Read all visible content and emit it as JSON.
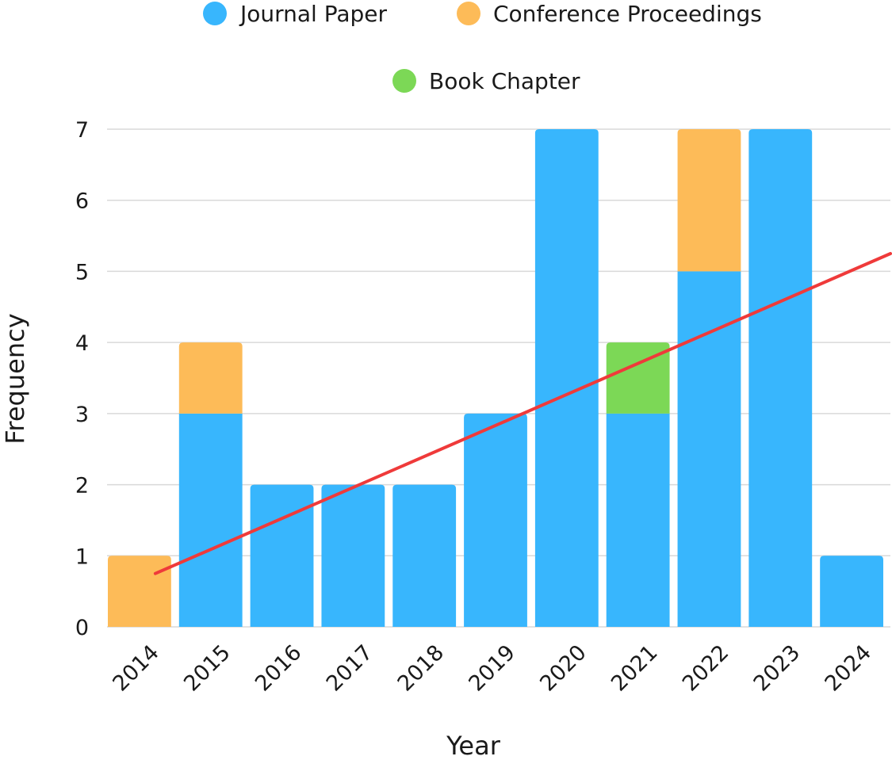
{
  "chart_data": {
    "type": "bar",
    "stacked": true,
    "categories": [
      "2014",
      "2015",
      "2016",
      "2017",
      "2018",
      "2019",
      "2020",
      "2021",
      "2022",
      "2023",
      "2024"
    ],
    "series": [
      {
        "name": "Journal Paper",
        "color": "#38b6fd",
        "values": [
          0,
          3,
          2,
          2,
          2,
          3,
          7,
          3,
          5,
          7,
          1
        ]
      },
      {
        "name": "Conference Proceedings",
        "color": "#fdbb58",
        "values": [
          1,
          1,
          0,
          0,
          0,
          0,
          0,
          0,
          2,
          0,
          0
        ]
      },
      {
        "name": "Book Chapter",
        "color": "#7cd856",
        "values": [
          0,
          0,
          0,
          0,
          0,
          0,
          0,
          1,
          0,
          0,
          0
        ]
      }
    ],
    "trendline": {
      "type": "linear",
      "color": "#ef3a3a",
      "start": 0.75,
      "end": 5.25
    },
    "xlabel": "Year",
    "ylabel": "Frequency",
    "ylim": [
      0,
      7
    ],
    "yticks": [
      "0",
      "1",
      "2",
      "3",
      "4",
      "5",
      "6",
      "7"
    ],
    "grid": true,
    "legend_position": "top-center"
  }
}
